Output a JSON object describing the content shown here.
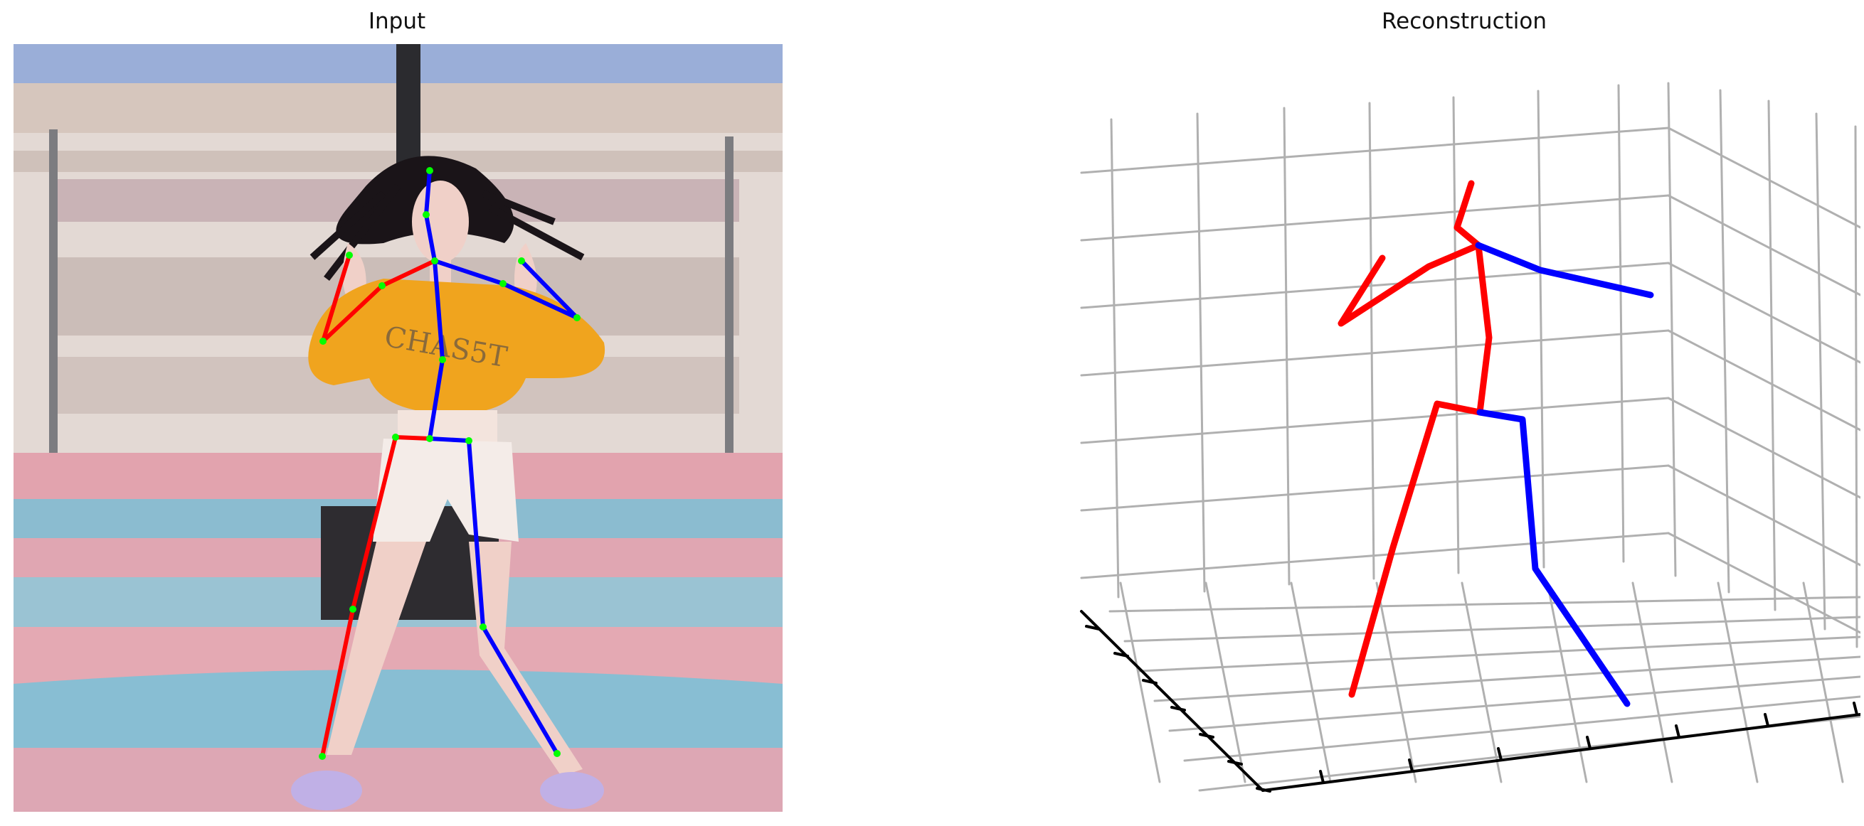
{
  "panels": {
    "input": {
      "title": "Input"
    },
    "reconstruction": {
      "title": "Reconstruction"
    }
  },
  "colors": {
    "left_limb": "#ff0000",
    "right_limb": "#0000ff",
    "joint": "#00ff00",
    "grid": "#b0b0b0",
    "axis": "#000000"
  },
  "photo": {
    "description_icon": "dancer-photo",
    "sky": "#9aaed8",
    "building": "#e3d9d4",
    "court_pink": "#e2a3ae",
    "court_blue": "#8bbcd0",
    "top_color": "#f0a41e",
    "shorts_color": "#f4ece8",
    "skin": "#f0d0c8",
    "hair": "#1a1418",
    "shoes": "#c0b0e6"
  }
}
